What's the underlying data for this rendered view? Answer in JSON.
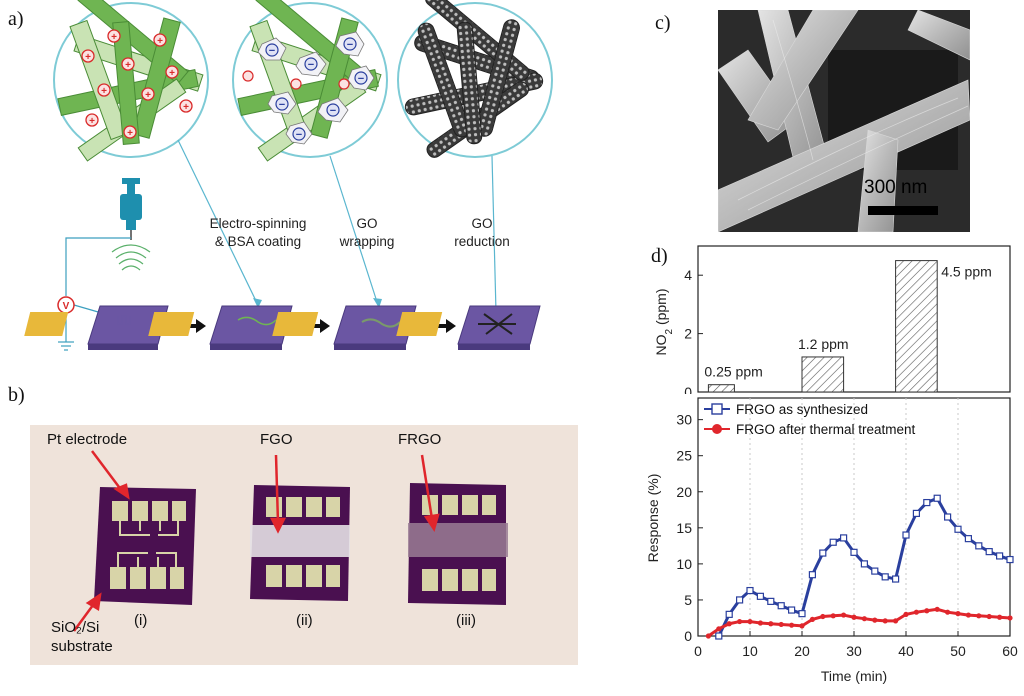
{
  "panels": {
    "a": {
      "label": "a)",
      "steps": [
        {
          "line1": "Electro-spinning",
          "line2": "& BSA coating"
        },
        {
          "line1": "GO",
          "line2": "wrapping"
        },
        {
          "line1": "GO",
          "line2": "reduction"
        }
      ],
      "source_symbol": "V"
    },
    "b": {
      "label": "b)",
      "callouts": {
        "electrode": "Pt electrode",
        "fgo": "FGO",
        "frgo": "FRGO",
        "substrate_line1": "SiO₂/Si",
        "substrate_line2": "substrate"
      },
      "sample_labels": [
        "(i)",
        "(ii)",
        "(iii)"
      ]
    },
    "c": {
      "label": "c)",
      "scalebar": "300 nm"
    },
    "d": {
      "label": "d)"
    }
  },
  "colors": {
    "fiber_green": "#6fb552",
    "fiber_light": "#c9e3b4",
    "circle_outline": "#7ecbd6",
    "gold": "#e8b83a",
    "substrate_purple": "#6b56a3",
    "series_blue": "#2a3f9e",
    "series_red": "#e0262c",
    "photo_bg": "#efe3da",
    "chip_purple": "#4a1050"
  },
  "chart_data": [
    {
      "type": "bar",
      "title": "",
      "xlabel": "",
      "ylabel": "NO2 (ppm)",
      "ylabel_main": "NO",
      "ylabel_sub": "2",
      "ylabel_unit": " (ppm)",
      "xlim": [
        0,
        60
      ],
      "ylim": [
        0,
        5
      ],
      "yticks": [
        "0",
        "2",
        "4"
      ],
      "hatch": "diagonal",
      "bars": [
        {
          "x_start": 2,
          "x_end": 7,
          "value": 0.25,
          "label": "0.25 ppm"
        },
        {
          "x_start": 20,
          "x_end": 28,
          "value": 1.2,
          "label": "1.2 ppm"
        },
        {
          "x_start": 38,
          "x_end": 46,
          "value": 4.5,
          "label": "4.5 ppm"
        }
      ]
    },
    {
      "type": "line",
      "title": "",
      "xlabel": "Time (min)",
      "ylabel": "Response (%)",
      "xlim": [
        0,
        60
      ],
      "ylim": [
        0,
        33
      ],
      "xticks": [
        "0",
        "10",
        "20",
        "30",
        "40",
        "50",
        "60"
      ],
      "yticks": [
        "0",
        "5",
        "10",
        "15",
        "20",
        "25",
        "30"
      ],
      "grid_x": [
        10,
        20,
        30,
        40,
        50
      ],
      "legend_position": "top-left",
      "series": [
        {
          "name": "FRGO as synthesized",
          "marker": "open-square",
          "color": "#2a3f9e",
          "points": [
            [
              4,
              0
            ],
            [
              6,
              3
            ],
            [
              8,
              5
            ],
            [
              10,
              6.3
            ],
            [
              12,
              5.5
            ],
            [
              14,
              4.8
            ],
            [
              16,
              4.2
            ],
            [
              18,
              3.6
            ],
            [
              20,
              3.1
            ],
            [
              22,
              8.5
            ],
            [
              24,
              11.5
            ],
            [
              26,
              13
            ],
            [
              28,
              13.6
            ],
            [
              30,
              11.6
            ],
            [
              32,
              10
            ],
            [
              34,
              9
            ],
            [
              36,
              8.2
            ],
            [
              38,
              7.9
            ],
            [
              40,
              14
            ],
            [
              42,
              17
            ],
            [
              44,
              18.5
            ],
            [
              46,
              19.1
            ],
            [
              48,
              16.5
            ],
            [
              50,
              14.8
            ],
            [
              52,
              13.5
            ],
            [
              54,
              12.5
            ],
            [
              56,
              11.7
            ],
            [
              58,
              11.1
            ],
            [
              60,
              10.6
            ]
          ]
        },
        {
          "name": "FRGO after thermal treatment",
          "marker": "filled-circle",
          "color": "#e0262c",
          "points": [
            [
              2,
              0
            ],
            [
              4,
              1
            ],
            [
              6,
              1.7
            ],
            [
              8,
              2
            ],
            [
              10,
              2
            ],
            [
              12,
              1.8
            ],
            [
              14,
              1.7
            ],
            [
              16,
              1.6
            ],
            [
              18,
              1.5
            ],
            [
              20,
              1.4
            ],
            [
              22,
              2.3
            ],
            [
              24,
              2.7
            ],
            [
              26,
              2.8
            ],
            [
              28,
              2.9
            ],
            [
              30,
              2.6
            ],
            [
              32,
              2.4
            ],
            [
              34,
              2.2
            ],
            [
              36,
              2.1
            ],
            [
              38,
              2.1
            ],
            [
              40,
              3
            ],
            [
              42,
              3.3
            ],
            [
              44,
              3.5
            ],
            [
              46,
              3.7
            ],
            [
              48,
              3.3
            ],
            [
              50,
              3.1
            ],
            [
              52,
              2.9
            ],
            [
              54,
              2.8
            ],
            [
              56,
              2.7
            ],
            [
              58,
              2.6
            ],
            [
              60,
              2.5
            ]
          ]
        }
      ]
    }
  ]
}
